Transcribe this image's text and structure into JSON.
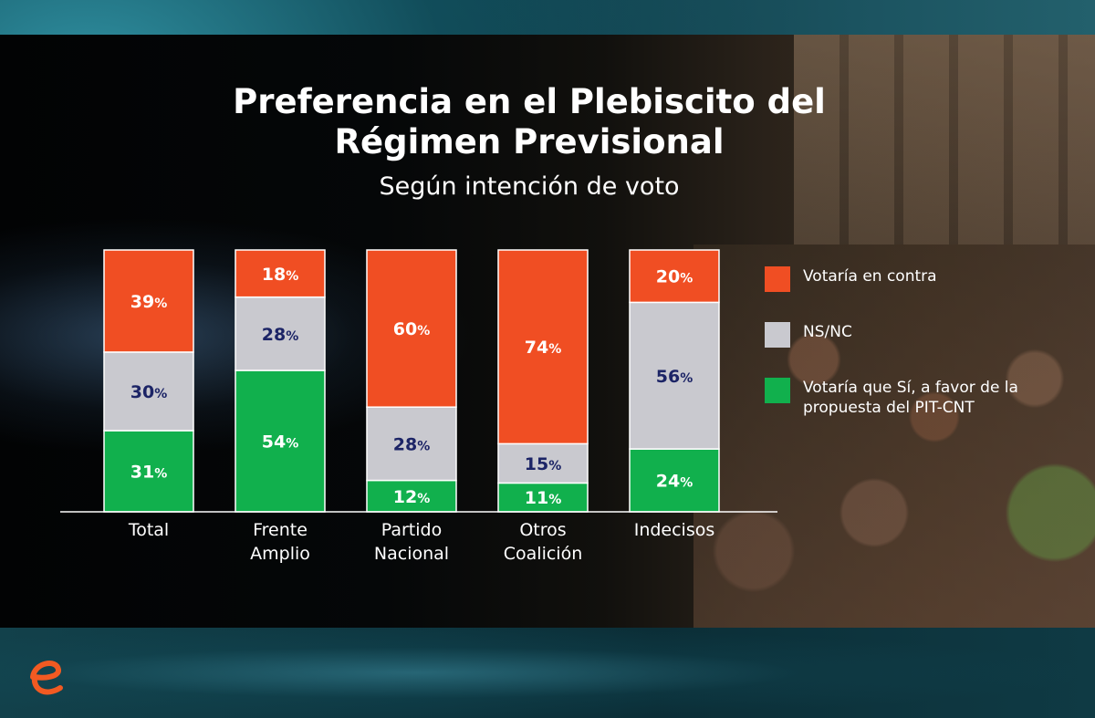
{
  "title": "Preferencia en el Plebiscito del Régimen Previsional",
  "subtitle": "Según intención de voto",
  "legend": {
    "contra": "Votaría en contra",
    "nsnc": "NS/NC",
    "si": "Votaría que Sí, a favor de la propuesta del PIT-CNT"
  },
  "logo": {
    "icon": "e-logo-icon",
    "color": "#f25a22"
  },
  "colors": {
    "contra": "#f04e23",
    "nsnc": "#c9c9cf",
    "si": "#11b04d",
    "label_on_contra": "#ffffff",
    "label_on_nsnc": "#1c2466",
    "label_on_si": "#ffffff"
  },
  "chart_data": {
    "type": "bar",
    "stacked": true,
    "categories": [
      "Total",
      "Frente Amplio",
      "Partido Nacional",
      "Otros Coalición",
      "Indecisos"
    ],
    "series": [
      {
        "name": "Votaría que Sí, a favor de la propuesta del PIT-CNT",
        "key": "si",
        "values": [
          31,
          54,
          12,
          11,
          24
        ]
      },
      {
        "name": "NS/NC",
        "key": "nsnc",
        "values": [
          30,
          28,
          28,
          15,
          56
        ]
      },
      {
        "name": "Votaría en contra",
        "key": "contra",
        "values": [
          39,
          18,
          60,
          74,
          20
        ]
      }
    ],
    "data_labels": {
      "si": [
        "31",
        "54",
        "12",
        "11",
        "24"
      ],
      "nsnc": [
        "30",
        "28",
        "28",
        "15",
        "56"
      ],
      "contra": [
        "39",
        "18",
        "60",
        "74",
        "20"
      ]
    },
    "unit": "%",
    "ylim": [
      0,
      100
    ],
    "legend_position": "right",
    "grid": false
  }
}
